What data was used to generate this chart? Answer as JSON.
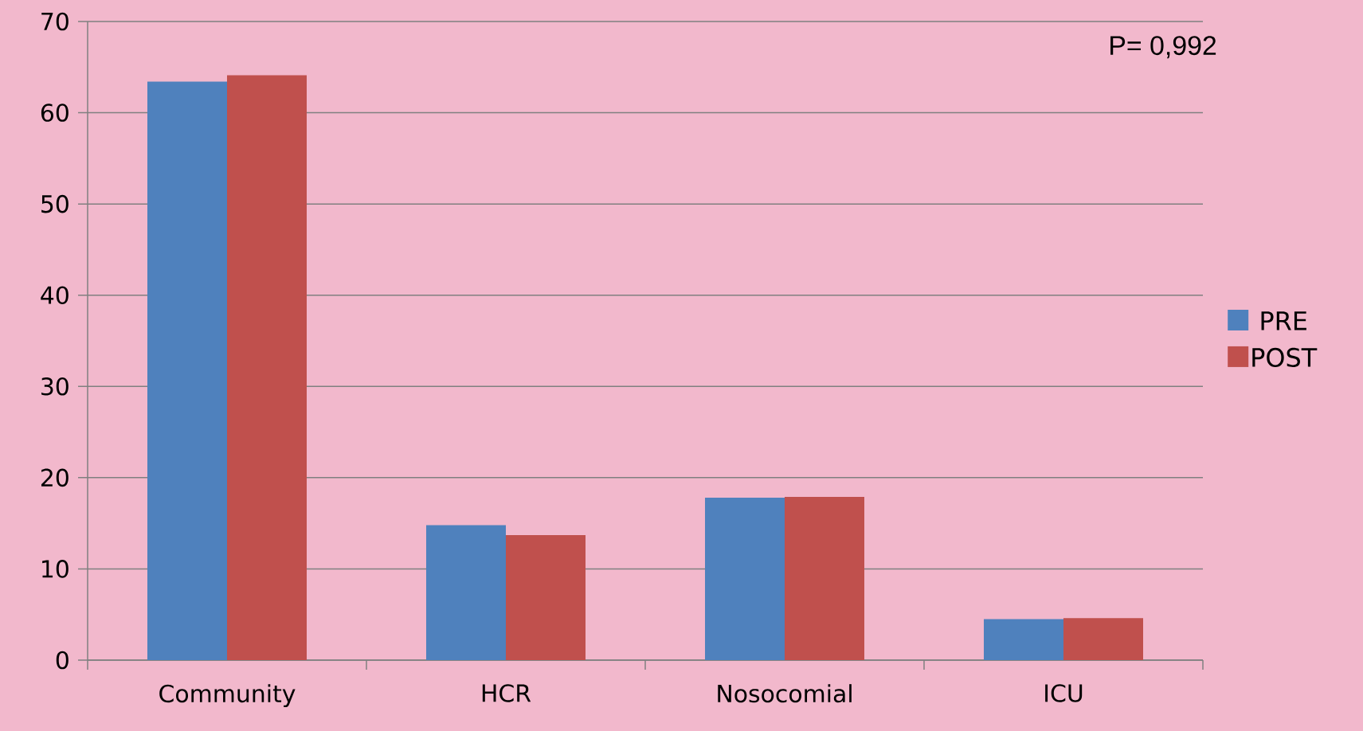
{
  "chart_data": {
    "type": "bar",
    "categories": [
      "Community",
      "HCR",
      "Nosocomial",
      "ICU"
    ],
    "series": [
      {
        "name": "PRE",
        "color": "#4f81bd",
        "values": [
          63.4,
          14.8,
          17.8,
          4.5
        ]
      },
      {
        "name": "POST",
        "color": "#c0504d",
        "values": [
          64.1,
          13.7,
          17.9,
          4.6
        ]
      }
    ],
    "ylim": [
      0,
      70
    ],
    "yticks": [
      0,
      10,
      20,
      30,
      40,
      50,
      60,
      70
    ],
    "grid": "y",
    "legend": "right",
    "annotations": [
      "P= 0,992"
    ]
  }
}
